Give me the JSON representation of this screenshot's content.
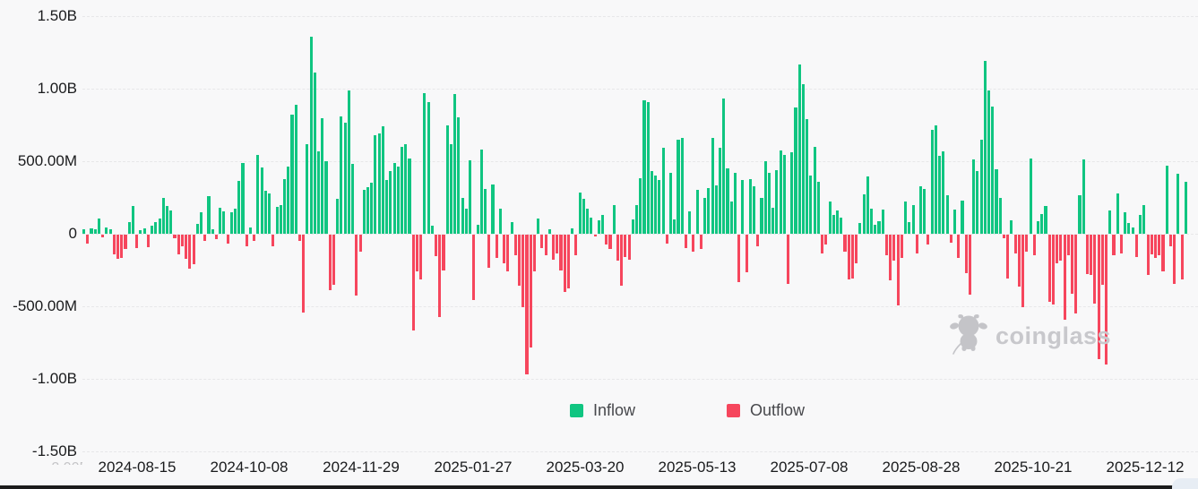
{
  "chart_data": {
    "type": "bar",
    "title": "",
    "xlabel": "",
    "ylabel": "",
    "value_unit": "M",
    "grid": true,
    "legend_position": "bottom",
    "legend": [
      {
        "label": "Inflow",
        "color": "#10c581"
      },
      {
        "label": "Outflow",
        "color": "#f6465d"
      }
    ],
    "y_ticks": [
      "1.50B",
      "1.00B",
      "500.00M",
      "0",
      "-500.00M",
      "-1.00B",
      "-1.50B"
    ],
    "y_tick_values_m": [
      1500,
      1000,
      500,
      0,
      -500,
      -1000,
      -1500
    ],
    "ylim_m": [
      -1500,
      1500
    ],
    "x_ticks": [
      "2024-08-15",
      "2024-10-08",
      "2024-11-29",
      "2025-01-27",
      "2025-03-20",
      "2025-05-13",
      "2025-07-08",
      "2025-08-28",
      "2025-10-21",
      "2025-12-12"
    ],
    "values_m": [
      30,
      -60,
      35,
      28,
      103,
      -18,
      43,
      31,
      -134,
      -169,
      -163,
      -97,
      78,
      192,
      -95,
      22,
      35,
      -88,
      55,
      80,
      103,
      247,
      192,
      160,
      -25,
      -134,
      -80,
      -169,
      -237,
      -206,
      66,
      150,
      -45,
      258,
      31,
      -30,
      181,
      155,
      -60,
      146,
      171,
      363,
      490,
      -80,
      45,
      -45,
      546,
      455,
      295,
      280,
      -80,
      185,
      200,
      375,
      465,
      820,
      890,
      -45,
      -535,
      615,
      1355,
      1110,
      570,
      795,
      500,
      -385,
      -345,
      243,
      810,
      768,
      988,
      480,
      -420,
      -118,
      300,
      320,
      350,
      680,
      690,
      740,
      370,
      430,
      490,
      460,
      600,
      620,
      520,
      -660,
      -250,
      -310,
      970,
      910,
      55,
      -150,
      -570,
      -245,
      745,
      620,
      965,
      800,
      245,
      175,
      505,
      -450,
      60,
      580,
      310,
      -230,
      340,
      -160,
      175,
      -200,
      -250,
      80,
      -145,
      -350,
      -500,
      -965,
      -780,
      -250,
      105,
      -90,
      -145,
      30,
      -175,
      -130,
      -245,
      -395,
      -370,
      35,
      -140,
      285,
      240,
      170,
      110,
      -15,
      90,
      130,
      -70,
      -100,
      195,
      -180,
      -350,
      -155,
      -170,
      100,
      200,
      380,
      920,
      910,
      430,
      400,
      370,
      590,
      -60,
      420,
      100,
      650,
      660,
      -90,
      155,
      -120,
      300,
      -100,
      250,
      315,
      660,
      335,
      590,
      930,
      450,
      220,
      420,
      -330,
      370,
      -260,
      375,
      330,
      -80,
      250,
      500,
      420,
      180,
      440,
      575,
      545,
      -340,
      560,
      870,
      1165,
      1030,
      790,
      400,
      600,
      360,
      -130,
      -70,
      225,
      130,
      160,
      110,
      -120,
      -310,
      -305,
      -195,
      75,
      270,
      395,
      175,
      60,
      85,
      165,
      -145,
      -315,
      -180,
      -490,
      -160,
      225,
      80,
      195,
      -130,
      330,
      310,
      -70,
      715,
      750,
      540,
      565,
      265,
      -55,
      165,
      -160,
      230,
      -265,
      -415,
      510,
      430,
      650,
      1190,
      990,
      875,
      445,
      250,
      -25,
      -305,
      95,
      -130,
      -360,
      -500,
      -120,
      520,
      -140,
      85,
      135,
      190,
      -460,
      -480,
      -200,
      -180,
      -585,
      -140,
      -405,
      -545,
      265,
      510,
      -270,
      -280,
      -475,
      -855,
      -345,
      -895,
      160,
      -145,
      280,
      -130,
      150,
      75,
      45,
      -155,
      130,
      200,
      -280,
      -135,
      -160,
      -145,
      -250,
      470,
      -80,
      -340,
      415,
      -310,
      355
    ]
  },
  "watermark": {
    "text": "coinglass",
    "icon": "coinglass-bull-icon",
    "color": "#c8c8cc"
  },
  "colors": {
    "background": "#f8f8f9",
    "inflow": "#10c581",
    "outflow": "#f6465d",
    "axis_text": "#1a1b1d",
    "gridline": "#e7e7e9"
  }
}
